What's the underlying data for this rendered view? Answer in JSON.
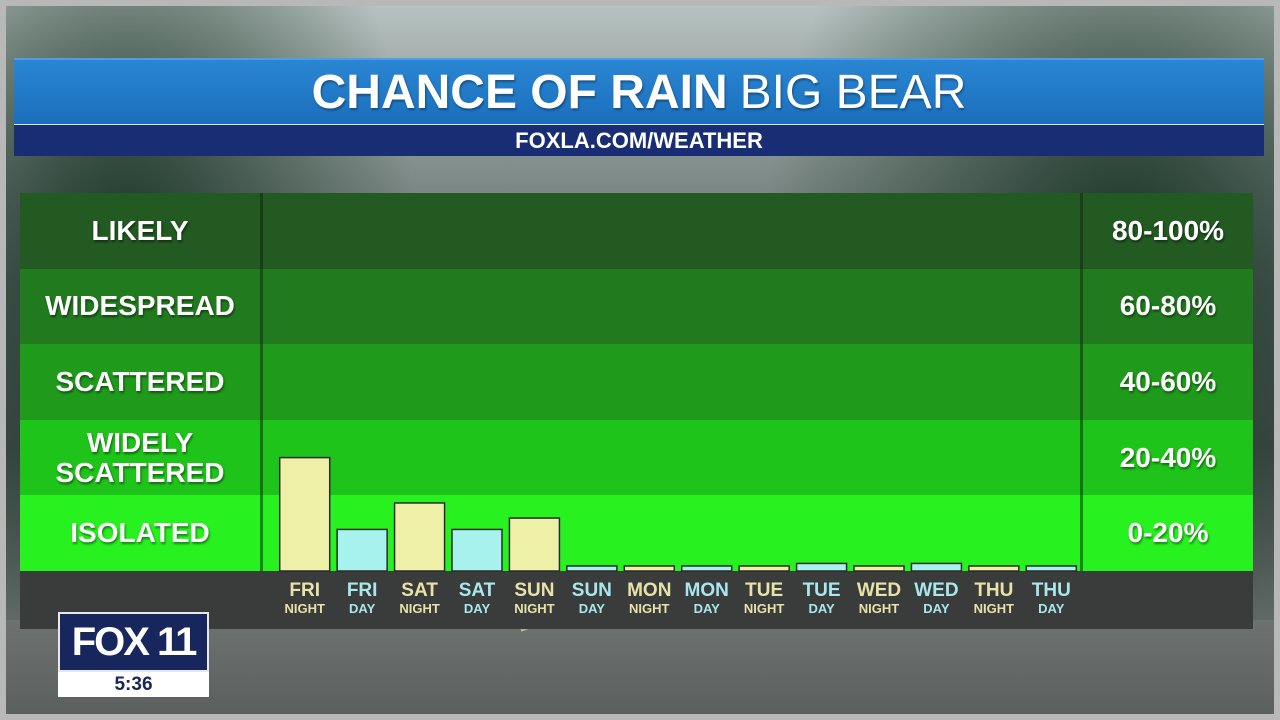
{
  "header": {
    "title_main": "CHANCE OF RAIN",
    "title_location": "BIG BEAR",
    "url": "FOXLA.COM/WEATHER"
  },
  "bands": [
    {
      "label": "LIKELY",
      "range": "80-100%",
      "color": "#225a22"
    },
    {
      "label": "WIDESPREAD",
      "range": "60-80%",
      "color": "#227a1f"
    },
    {
      "label": "SCATTERED",
      "range": "40-60%",
      "color": "#1f9a1b"
    },
    {
      "label": "WIDELY SCATTERED",
      "range": "20-40%",
      "color": "#1fc41a"
    },
    {
      "label": "ISOLATED",
      "range": "0-20%",
      "color": "#27f21f"
    }
  ],
  "chart_data": {
    "type": "bar",
    "title": "CHANCE OF RAIN BIG BEAR",
    "categories": [
      {
        "top": "FRI",
        "bottom": "NIGHT"
      },
      {
        "top": "FRI",
        "bottom": "DAY"
      },
      {
        "top": "SAT",
        "bottom": "NIGHT"
      },
      {
        "top": "SAT",
        "bottom": "DAY"
      },
      {
        "top": "SUN",
        "bottom": "NIGHT"
      },
      {
        "top": "SUN",
        "bottom": "DAY"
      },
      {
        "top": "MON",
        "bottom": "NIGHT"
      },
      {
        "top": "MON",
        "bottom": "DAY"
      },
      {
        "top": "TUE",
        "bottom": "NIGHT"
      },
      {
        "top": "TUE",
        "bottom": "DAY"
      },
      {
        "top": "WED",
        "bottom": "NIGHT"
      },
      {
        "top": "WED",
        "bottom": "DAY"
      },
      {
        "top": "THU",
        "bottom": "NIGHT"
      },
      {
        "top": "THU",
        "bottom": "DAY"
      }
    ],
    "values": [
      30,
      11,
      18,
      11,
      14,
      1,
      1,
      1,
      1,
      2,
      1,
      2,
      1,
      1
    ],
    "ylim": [
      0,
      100
    ],
    "night_color": "#eef0a8",
    "day_color": "#a8f2ee"
  },
  "logo": {
    "brand": "FOX 11",
    "time": "5:36"
  }
}
